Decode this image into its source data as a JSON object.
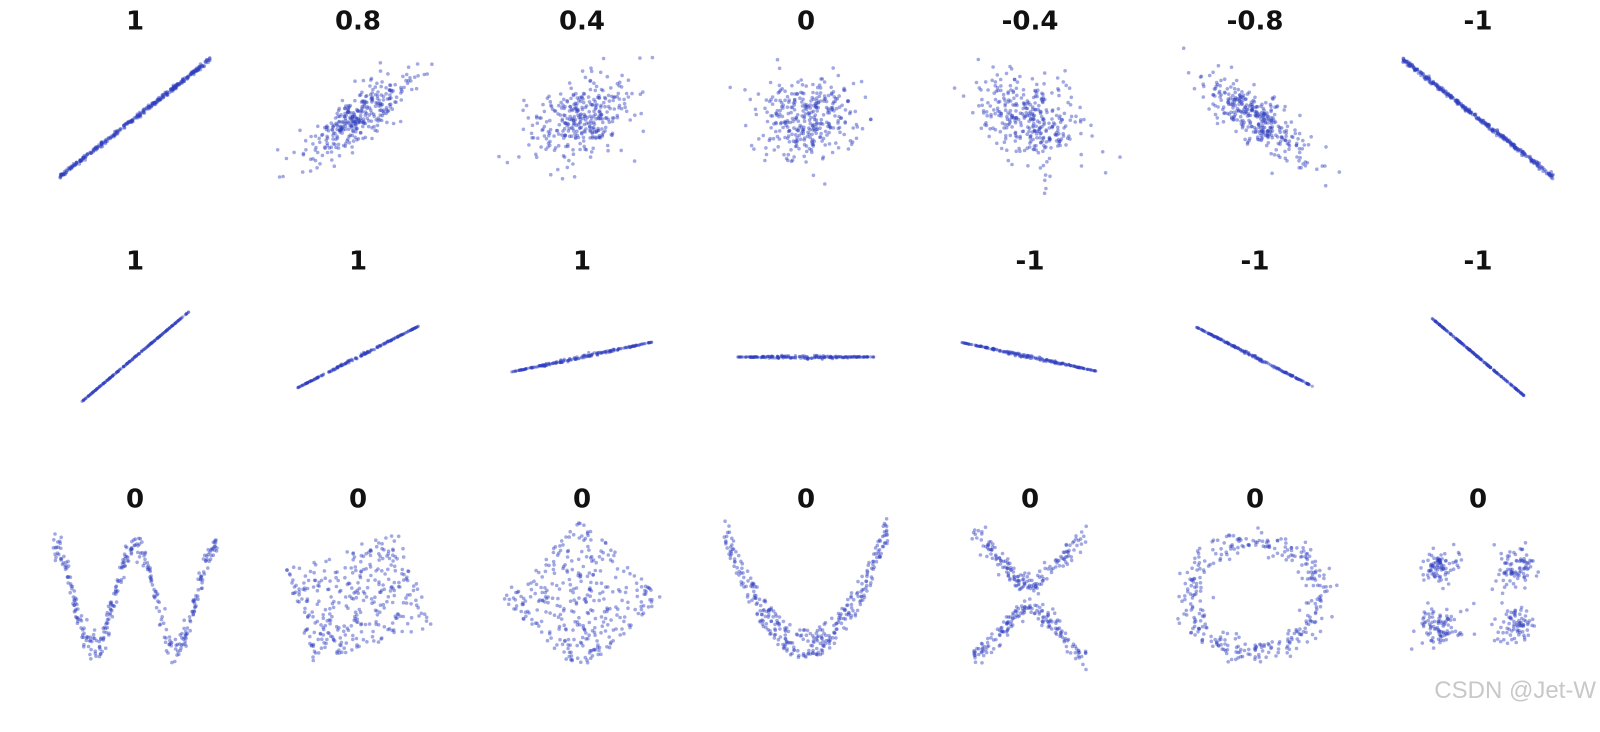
{
  "panels": [
    [
      {
        "label": "1"
      },
      {
        "label": "0.8"
      },
      {
        "label": "0.4"
      },
      {
        "label": "0"
      },
      {
        "label": "-0.4"
      },
      {
        "label": "-0.8"
      },
      {
        "label": "-1"
      }
    ],
    [
      {
        "label": "1"
      },
      {
        "label": "1"
      },
      {
        "label": "1"
      },
      {},
      {
        "label": "-1"
      },
      {
        "label": "-1"
      },
      {
        "label": "-1"
      }
    ],
    [
      {
        "label": "0"
      },
      {
        "label": "0"
      },
      {
        "label": "0"
      },
      {
        "label": "0"
      },
      {
        "label": "0"
      },
      {
        "label": "0"
      },
      {
        "label": "0"
      }
    ]
  ],
  "watermark": "CSDN @Jet-W"
}
